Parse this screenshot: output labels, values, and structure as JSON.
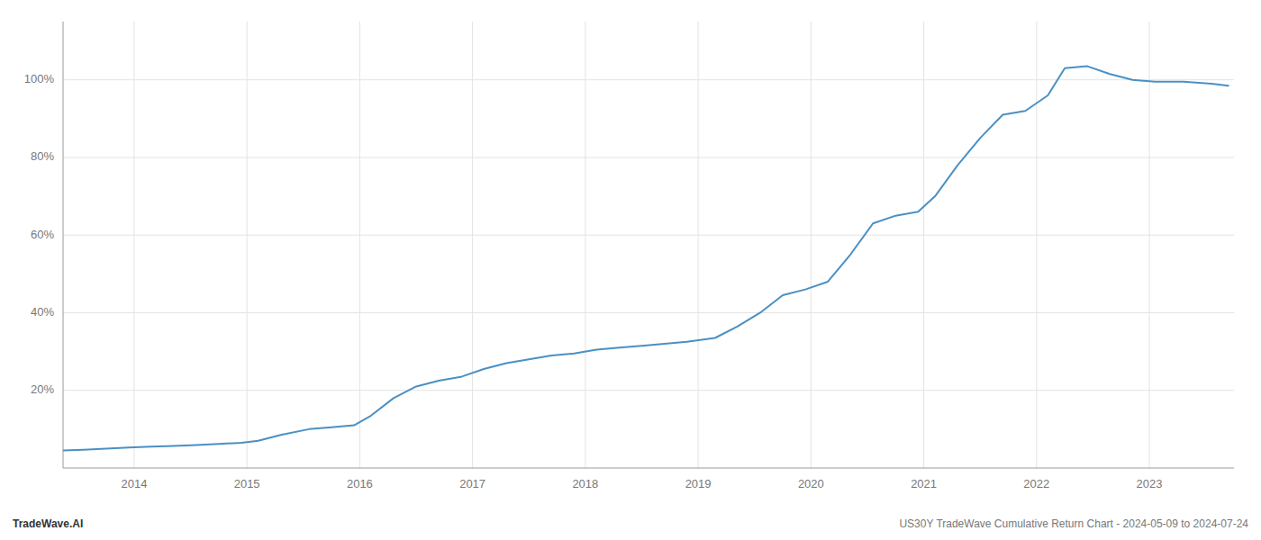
{
  "chart_data": {
    "type": "line",
    "x": [
      2013.37,
      2013.55,
      2013.75,
      2013.95,
      2014.15,
      2014.35,
      2014.55,
      2014.75,
      2014.95,
      2015.1,
      2015.3,
      2015.55,
      2015.75,
      2015.95,
      2016.1,
      2016.3,
      2016.5,
      2016.7,
      2016.9,
      2017.1,
      2017.3,
      2017.5,
      2017.7,
      2017.9,
      2018.1,
      2018.3,
      2018.5,
      2018.7,
      2018.9,
      2019.15,
      2019.35,
      2019.55,
      2019.75,
      2019.95,
      2020.15,
      2020.35,
      2020.55,
      2020.75,
      2020.95,
      2021.1,
      2021.3,
      2021.5,
      2021.7,
      2021.9,
      2022.1,
      2022.25,
      2022.45,
      2022.65,
      2022.85,
      2023.05,
      2023.3,
      2023.55,
      2023.7
    ],
    "values": [
      4.5,
      4.7,
      5.0,
      5.3,
      5.5,
      5.7,
      5.9,
      6.2,
      6.5,
      7.0,
      8.5,
      10.0,
      10.5,
      11.0,
      13.5,
      18.0,
      21.0,
      22.5,
      23.5,
      25.5,
      27.0,
      28.0,
      29.0,
      29.5,
      30.5,
      31.0,
      31.5,
      32.0,
      32.5,
      33.5,
      36.5,
      40.0,
      44.5,
      46.0,
      48.0,
      55.0,
      63.0,
      65.0,
      66.0,
      70.0,
      78.0,
      85.0,
      91.0,
      92.0,
      96.0,
      103.0,
      103.5,
      101.5,
      100.0,
      99.5,
      99.5,
      99.0,
      98.5
    ],
    "color": "#4a90c4",
    "xlim": [
      2013.37,
      2023.75
    ],
    "ylim": [
      0,
      115
    ],
    "xticks": [
      2014,
      2015,
      2016,
      2017,
      2018,
      2019,
      2020,
      2021,
      2022,
      2023
    ],
    "yticks": [
      {
        "value": 20,
        "label": "20%"
      },
      {
        "value": 40,
        "label": "40%"
      },
      {
        "value": 60,
        "label": "60%"
      },
      {
        "value": 80,
        "label": "80%"
      },
      {
        "value": 100,
        "label": "100%"
      }
    ],
    "grid": true,
    "annotations": [
      "TradeWave.AI",
      "US30Y TradeWave Cumulative Return Chart - 2024-05-09 to 2024-07-24"
    ]
  }
}
